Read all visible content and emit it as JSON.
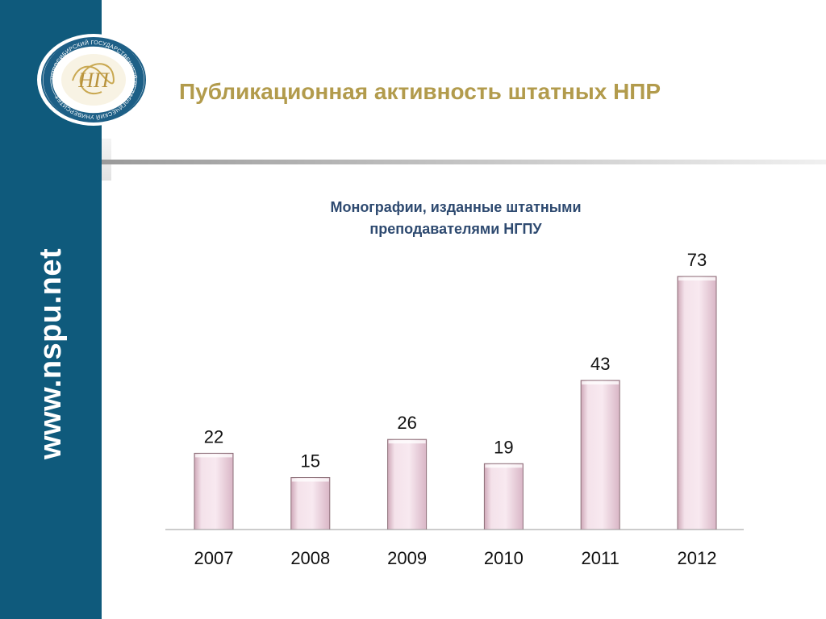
{
  "header": {
    "title": "Публикационная активность штатных НПР"
  },
  "sidebar": {
    "url": "www.nspu.net",
    "logo": {
      "ring_text": "НОВОСИБИРСКИЙ ГОСУДАРСТВЕННЫЙ ПЕДАГОГИЧЕСКИЙ УНИВЕРСИТЕТ",
      "monogram": "НП"
    }
  },
  "colors": {
    "sidebar": "#0f5a7c",
    "title": "#b29b4c",
    "chart_title": "#2e4a70",
    "bar_fill_light": "#f7e6ee",
    "bar_fill_dark": "#e3c2d0",
    "bar_edge": "#8c6f78"
  },
  "chart_data": {
    "type": "bar",
    "title_lines": [
      "Монографии, изданные штатными",
      "преподавателями НГПУ"
    ],
    "categories": [
      "2007",
      "2008",
      "2009",
      "2010",
      "2011",
      "2012"
    ],
    "values": [
      22,
      15,
      26,
      19,
      43,
      73
    ],
    "xlabel": "",
    "ylabel": "",
    "ylim": [
      0,
      80
    ],
    "grid": false,
    "legend": "none",
    "data_labels": true
  }
}
